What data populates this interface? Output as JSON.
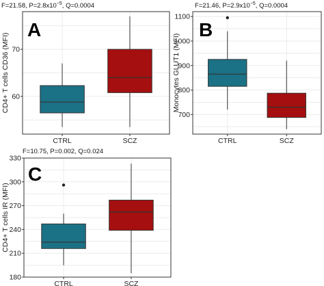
{
  "chart_data": [
    {
      "type": "box",
      "panel_label": "A",
      "stats_text": "F=21.58, P=2.8x10",
      "stats_exp": "−5",
      "stats_tail": ", Q=0.0004",
      "ylabel": "CD4+ T cells CD36 (MFI)",
      "ylim": [
        52,
        78
      ],
      "yticks": [
        60,
        70
      ],
      "categories": [
        "CTRL",
        "SCZ"
      ],
      "colors": [
        "#1b7185",
        "#a50f0f"
      ],
      "boxes": [
        {
          "name": "CTRL",
          "min": 53.5,
          "q1": 56.5,
          "median": 58.8,
          "q3": 62.3,
          "max": 67.0,
          "outliers": []
        },
        {
          "name": "SCZ",
          "min": 53.5,
          "q1": 60.8,
          "median": 64.0,
          "q3": 70.0,
          "max": 77.0,
          "outliers": []
        }
      ]
    },
    {
      "type": "box",
      "panel_label": "B",
      "stats_text": "F=21.46, P=2.9x10",
      "stats_exp": "−5",
      "stats_tail": ", Q=0.0004",
      "ylabel": "Monocytes GLUT1 (MFI)",
      "ylim": [
        620,
        1120
      ],
      "yticks": [
        700,
        800,
        900,
        1000,
        1100
      ],
      "categories": [
        "CTRL",
        "SCZ"
      ],
      "colors": [
        "#1b7185",
        "#a50f0f"
      ],
      "boxes": [
        {
          "name": "CTRL",
          "min": 720,
          "q1": 815,
          "median": 865,
          "q3": 925,
          "max": 1040,
          "outliers": [
            1095
          ]
        },
        {
          "name": "SCZ",
          "min": 640,
          "q1": 688,
          "median": 730,
          "q3": 787,
          "max": 920,
          "outliers": []
        }
      ]
    },
    {
      "type": "box",
      "panel_label": "C",
      "stats_text": "F=10.75, P=0.002, Q=0.024",
      "stats_exp": "",
      "stats_tail": "",
      "ylabel": "CD4+ T cells IR (MFI)",
      "ylim": [
        180,
        330
      ],
      "yticks": [
        180,
        210,
        240,
        270,
        300,
        330
      ],
      "categories": [
        "CTRL",
        "SCZ"
      ],
      "colors": [
        "#1b7185",
        "#a50f0f"
      ],
      "boxes": [
        {
          "name": "CTRL",
          "min": 195,
          "q1": 216,
          "median": 224,
          "q3": 247,
          "max": 260,
          "outliers": [
            296
          ]
        },
        {
          "name": "SCZ",
          "min": 185,
          "q1": 239,
          "median": 262,
          "q3": 277,
          "max": 323,
          "outliers": []
        }
      ]
    }
  ]
}
